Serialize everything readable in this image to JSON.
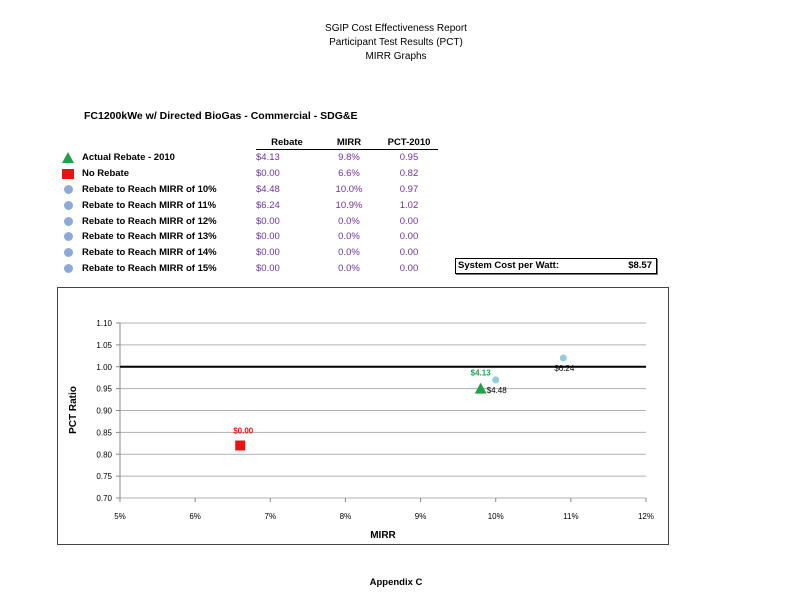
{
  "header": {
    "line1": "SGIP Cost Effectiveness Report",
    "line2": "Participant Test Results (PCT)",
    "line3": "MIRR Graphs"
  },
  "subtitle": "FC1200kWe w/ Directed BioGas - Commercial - SDG&E",
  "table": {
    "columns": [
      "Rebate",
      "MIRR",
      "PCT-2010"
    ],
    "rows": [
      {
        "icon": "green-triangle-icon",
        "label": "Actual Rebate - 2010",
        "rebate": "$4.13",
        "mirr": "9.8%",
        "pct": "0.95"
      },
      {
        "icon": "red-square-icon",
        "label": "No Rebate",
        "rebate": "$0.00",
        "mirr": "6.6%",
        "pct": "0.82"
      },
      {
        "icon": "blue-circle-icon",
        "label": "Rebate to Reach MIRR of 10%",
        "rebate": "$4.48",
        "mirr": "10.0%",
        "pct": "0.97"
      },
      {
        "icon": "blue-circle-icon",
        "label": "Rebate to Reach MIRR of 11%",
        "rebate": "$6.24",
        "mirr": "10.9%",
        "pct": "1.02"
      },
      {
        "icon": "blue-circle-icon",
        "label": "Rebate to Reach MIRR of 12%",
        "rebate": "$0.00",
        "mirr": "0.0%",
        "pct": "0.00"
      },
      {
        "icon": "blue-circle-icon",
        "label": "Rebate to Reach MIRR of 13%",
        "rebate": "$0.00",
        "mirr": "0.0%",
        "pct": "0.00"
      },
      {
        "icon": "blue-circle-icon",
        "label": "Rebate to Reach MIRR of 14%",
        "rebate": "$0.00",
        "mirr": "0.0%",
        "pct": "0.00"
      },
      {
        "icon": "blue-circle-icon",
        "label": "Rebate to Reach MIRR of 15%",
        "rebate": "$0.00",
        "mirr": "0.0%",
        "pct": "0.00"
      }
    ]
  },
  "system_cost": {
    "label": "System Cost per Watt:",
    "value": "$8.57"
  },
  "colors": {
    "value_text": "#7030a0",
    "actual": "#22a04a",
    "no_rebate": "#ee1111",
    "target_legend": "#8ea9d8",
    "target_points": "#92cddc",
    "gridline": "#b0b0b0",
    "reference_line": "#000000"
  },
  "chart_data": {
    "type": "scatter",
    "title": "",
    "xlabel": "MIRR",
    "ylabel": "PCT Ratio",
    "xlim": [
      5,
      12
    ],
    "ylim": [
      0.7,
      1.1
    ],
    "x_ticks": [
      "5%",
      "6%",
      "7%",
      "8%",
      "9%",
      "10%",
      "11%",
      "12%"
    ],
    "y_ticks": [
      "0.70",
      "0.75",
      "0.80",
      "0.85",
      "0.90",
      "0.95",
      "1.00",
      "1.05",
      "1.10"
    ],
    "grid": "horizontal",
    "reference_line": {
      "y": 1.0
    },
    "series": [
      {
        "name": "Actual Rebate - 2010",
        "marker": "triangle",
        "color": "#22a04a",
        "points": [
          {
            "x": 9.8,
            "y": 0.95,
            "label": "$4.13"
          }
        ]
      },
      {
        "name": "No Rebate",
        "marker": "square",
        "color": "#ee1111",
        "points": [
          {
            "x": 6.6,
            "y": 0.82,
            "label": "$0.00"
          }
        ]
      },
      {
        "name": "Rebate to Reach MIRR of 10%",
        "marker": "circle",
        "color": "#92cddc",
        "points": [
          {
            "x": 10.0,
            "y": 0.97,
            "label": "$4.48"
          }
        ]
      },
      {
        "name": "Rebate to Reach MIRR of 11%",
        "marker": "circle",
        "color": "#92cddc",
        "points": [
          {
            "x": 10.9,
            "y": 1.02,
            "label": "$6.24"
          }
        ]
      }
    ]
  },
  "footer": "Appendix C"
}
